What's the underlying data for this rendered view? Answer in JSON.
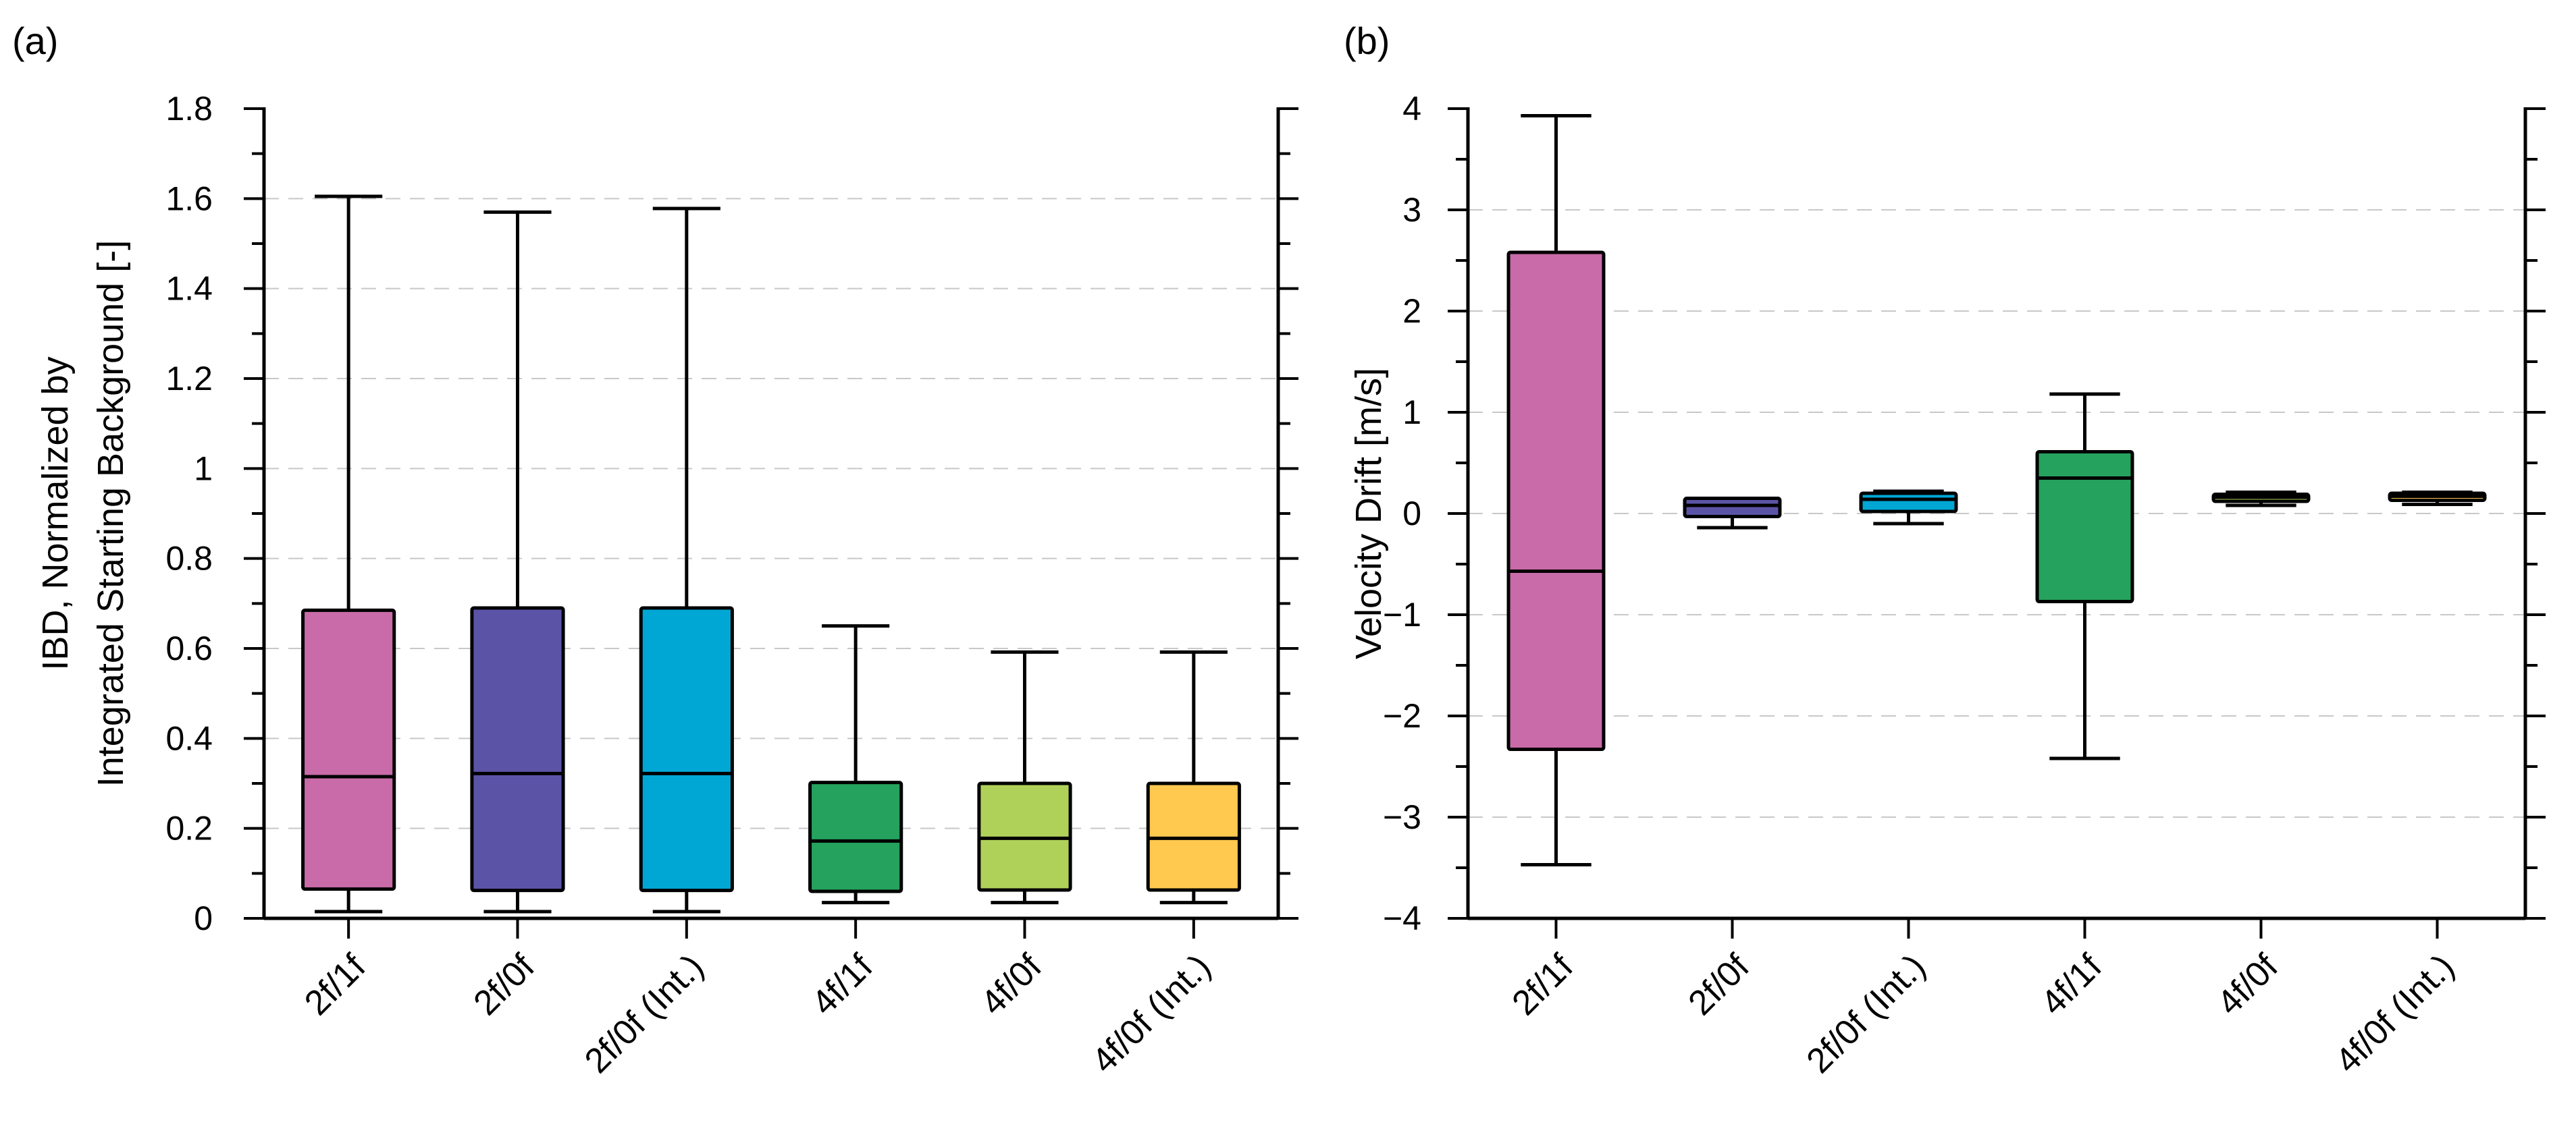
{
  "figure": {
    "colors": {
      "2f/1f": "#C86BA8",
      "2f/0f": "#5B54A6",
      "2f/0f (Int.)": "#00A7D5",
      "4f/1f": "#25A25E",
      "4f/0f": "#AFD159",
      "4f/0f (Int.)": "#FFC84E"
    }
  },
  "chart_data": [
    {
      "type": "box",
      "panel_label": "(a)",
      "title": "",
      "ylabel_lines": [
        "IBD, Normalized by",
        "Integrated Starting Background [-]"
      ],
      "xlabel": "",
      "ylim": [
        0,
        1.8
      ],
      "yticks": [
        0,
        0.2,
        0.4,
        0.6,
        0.8,
        1,
        1.2,
        1.4,
        1.6,
        1.8
      ],
      "ytick_labels": [
        "0",
        "0.2",
        "0.4",
        "0.6",
        "0.8",
        "1",
        "1.2",
        "1.4",
        "1.6",
        "1.8"
      ],
      "grid": "horizontal dashed",
      "categories": [
        "2f/1f",
        "2f/0f",
        "2f/0f (Int.)",
        "4f/1f",
        "4f/0f",
        "4f/0f (Int.)"
      ],
      "boxes": [
        {
          "category": "2f/1f",
          "min": 0.015,
          "q1": 0.065,
          "median": 0.315,
          "q3": 0.685,
          "max": 1.605
        },
        {
          "category": "2f/0f",
          "min": 0.015,
          "q1": 0.062,
          "median": 0.322,
          "q3": 0.69,
          "max": 1.57
        },
        {
          "category": "2f/0f (Int.)",
          "min": 0.015,
          "q1": 0.062,
          "median": 0.322,
          "q3": 0.69,
          "max": 1.578
        },
        {
          "category": "4f/1f",
          "min": 0.035,
          "q1": 0.06,
          "median": 0.172,
          "q3": 0.302,
          "max": 0.65
        },
        {
          "category": "4f/0f",
          "min": 0.035,
          "q1": 0.063,
          "median": 0.178,
          "q3": 0.3,
          "max": 0.592
        },
        {
          "category": "4f/0f (Int.)",
          "min": 0.035,
          "q1": 0.063,
          "median": 0.178,
          "q3": 0.3,
          "max": 0.592
        }
      ]
    },
    {
      "type": "box",
      "panel_label": "(b)",
      "title": "",
      "ylabel": "Velocity Drift [m/s]",
      "xlabel": "",
      "ylim": [
        -4,
        4
      ],
      "yticks": [
        -4,
        -3,
        -2,
        -1,
        0,
        1,
        2,
        3,
        4
      ],
      "ytick_labels": [
        "−4",
        "−3",
        "−2",
        "−1",
        "0",
        "1",
        "2",
        "3",
        "4"
      ],
      "grid": "horizontal dashed",
      "categories": [
        "2f/1f",
        "2f/0f",
        "2f/0f (Int.)",
        "4f/1f",
        "4f/0f",
        "4f/0f (Int.)"
      ],
      "boxes": [
        {
          "category": "2f/1f",
          "min": -3.47,
          "q1": -2.33,
          "median": -0.57,
          "q3": 2.58,
          "max": 3.93
        },
        {
          "category": "2f/0f",
          "min": -0.14,
          "q1": -0.03,
          "median": 0.08,
          "q3": 0.15,
          "max": 0.15
        },
        {
          "category": "2f/0f (Int.)",
          "min": -0.1,
          "q1": 0.02,
          "median": 0.14,
          "q3": 0.2,
          "max": 0.22
        },
        {
          "category": "4f/1f",
          "min": -2.42,
          "q1": -0.87,
          "median": 0.35,
          "q3": 0.61,
          "max": 1.18
        },
        {
          "category": "4f/0f",
          "min": 0.08,
          "q1": 0.12,
          "median": 0.16,
          "q3": 0.19,
          "max": 0.21
        },
        {
          "category": "4f/0f (Int.)",
          "min": 0.09,
          "q1": 0.13,
          "median": 0.17,
          "q3": 0.2,
          "max": 0.21
        }
      ]
    }
  ]
}
